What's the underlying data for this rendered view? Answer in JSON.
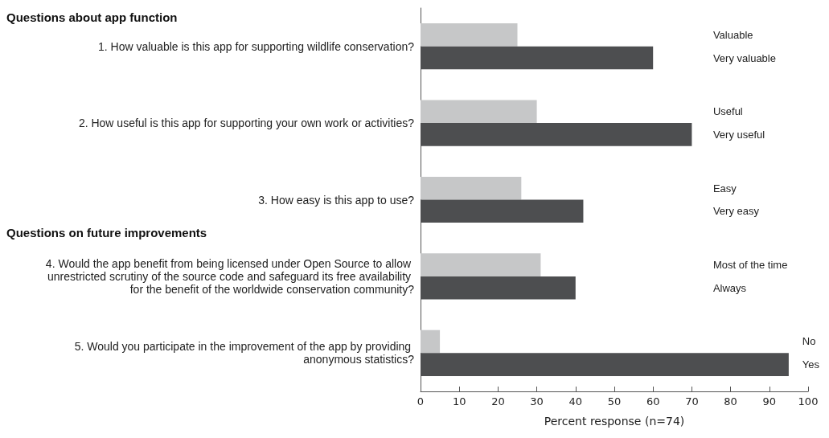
{
  "chart_data": {
    "type": "bar",
    "orientation": "horizontal",
    "categories": [
      "1. How valuable is this app for supporting wildlife conservation?",
      "2. How useful is this app for supporting your own work or activities?",
      "3. How easy is this app to use?",
      "4. Would the app benefit from being licensed under Open Source to allow unrestricted scrutiny of the source code and safeguard its free availability for the benefit of the worldwide conservation community?",
      "5. Would you participate in the improvement of the app by providing anonymous statistics?"
    ],
    "series": [
      {
        "color": "#c6c7c8",
        "values": [
          25,
          30,
          26,
          31,
          5
        ]
      },
      {
        "color": "#4d4e50",
        "values": [
          60,
          70,
          42,
          40,
          95
        ]
      }
    ],
    "xlabel": "Percent response (n=74)",
    "xlim": [
      0,
      100
    ],
    "xticks": [
      0,
      10,
      20,
      30,
      40,
      50,
      60,
      70,
      80,
      90,
      100
    ],
    "grid": false,
    "annotations": [
      "Questions about app function",
      "Questions on future improvements",
      "Valuable",
      "Very valuable",
      "Useful",
      "Very useful",
      "Easy",
      "Very easy",
      "Most of the time",
      "Always",
      "No",
      "Yes"
    ]
  }
}
